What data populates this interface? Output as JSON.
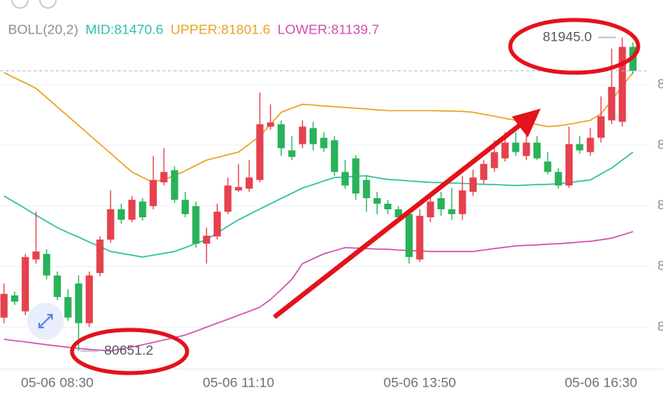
{
  "chart_data": {
    "type": "candlestick",
    "legend": [
      {
        "text": "BOLL(20,2)",
        "color": "#8a8f99"
      },
      {
        "text": "MID:81470.6",
        "color": "#2fbfa5"
      },
      {
        "text": "UPPER:81801.6",
        "color": "#e9a325"
      },
      {
        "text": "LOWER:81139.7",
        "color": "#d44fb0"
      }
    ],
    "max_label": "81945.0",
    "min_label": "80651.2",
    "up_color": "#e5414e",
    "down_color": "#29b259",
    "categories": [
      null,
      null,
      null,
      null,
      null,
      "05-06 08:30",
      null,
      null,
      null,
      null,
      null,
      null,
      null,
      null,
      null,
      null,
      null,
      null,
      null,
      null,
      null,
      null,
      "05-06 11:10",
      null,
      null,
      null,
      null,
      null,
      null,
      null,
      null,
      null,
      null,
      null,
      null,
      null,
      null,
      null,
      null,
      "05-06 13:50",
      null,
      null,
      null,
      null,
      null,
      null,
      null,
      null,
      null,
      null,
      null,
      null,
      null,
      null,
      null,
      null,
      "05-06 16:30",
      null,
      null,
      null
    ],
    "ohlc": {
      "open": [
        80789,
        80881,
        80815,
        81029,
        81052,
        80963,
        80874,
        80930,
        80766,
        80973,
        81111,
        81236,
        81193,
        81268,
        81249,
        81347,
        81397,
        81275,
        81249,
        81094,
        81124,
        81226,
        81314,
        81321,
        81357,
        81577,
        81587,
        81479,
        81505,
        81571,
        81531,
        81521,
        81390,
        81446,
        81357,
        81282,
        81259,
        81236,
        81216,
        81029,
        81203,
        81282,
        81236,
        81216,
        81308,
        81357,
        81406,
        81446,
        81511,
        81456,
        81511,
        81433,
        81390,
        81334,
        81505,
        81472,
        81531,
        81603,
        81597,
        81906
      ],
      "high": [
        80930,
        80897,
        81052,
        81226,
        81071,
        80979,
        80907,
        80963,
        80979,
        81124,
        81314,
        81259,
        81291,
        81282,
        81456,
        81488,
        81413,
        81308,
        81268,
        81160,
        81259,
        81367,
        81423,
        81439,
        81718,
        81669,
        81603,
        81538,
        81603,
        81597,
        81554,
        81538,
        81439,
        81459,
        81374,
        81308,
        81275,
        81249,
        81236,
        81236,
        81291,
        81308,
        81324,
        81374,
        81400,
        81439,
        81521,
        81554,
        81554,
        81544,
        81538,
        81472,
        81406,
        81577,
        81538,
        81571,
        81702,
        81899,
        81945,
        81925
      ],
      "low": [
        80766,
        80841,
        80799,
        81012,
        80947,
        80861,
        80776,
        80651.2,
        80750,
        80960,
        81098,
        81176,
        81183,
        81190,
        81236,
        81334,
        81262,
        81203,
        81078,
        81012,
        81111,
        81216,
        81308,
        81308,
        81347,
        81564,
        81456,
        81439,
        81488,
        81479,
        81472,
        81374,
        81321,
        81275,
        81226,
        81216,
        81216,
        81193,
        81012,
        81019,
        81183,
        81209,
        81193,
        81193,
        81291,
        81341,
        81390,
        81433,
        81456,
        81439,
        81439,
        81380,
        81321,
        81324,
        81465,
        81456,
        81511,
        81587,
        81577,
        81794
      ],
      "close": [
        80887,
        80855,
        81039,
        81062,
        80963,
        80874,
        80789,
        80766,
        80963,
        81111,
        81236,
        81193,
        81275,
        81203,
        81357,
        81390,
        81275,
        81216,
        81094,
        81127,
        81226,
        81334,
        81328,
        81367,
        81587,
        81594,
        81488,
        81452,
        81577,
        81505,
        81488,
        81390,
        81334,
        81301,
        81282,
        81259,
        81236,
        81203,
        81039,
        81209,
        81268,
        81236,
        81216,
        81314,
        81367,
        81423,
        81472,
        81511,
        81472,
        81511,
        81446,
        81390,
        81334,
        81505,
        81479,
        81531,
        81620,
        81741,
        81906,
        81807
      ]
    },
    "series": [
      {
        "color": "#e9a325",
        "values": [
          81800,
          81778,
          81757,
          81735,
          81697,
          81658,
          81620,
          81582,
          81543,
          81505,
          81467,
          81428,
          81390,
          81368,
          81347,
          81360,
          81374,
          81395,
          81417,
          81439,
          81450,
          81461,
          81472,
          81505,
          81538,
          81587,
          81636,
          81653,
          81669,
          81666,
          81662,
          81659,
          81656,
          81653,
          81650,
          81646,
          81643,
          81643,
          81643,
          81643,
          81643,
          81642,
          81641,
          81640,
          81636,
          81628,
          81620,
          81611,
          81603,
          81594,
          81586,
          81577,
          81580,
          81587,
          81595,
          81603,
          81630,
          81685,
          81745,
          81800
        ]
      },
      {
        "color": "#2fbfa5",
        "values": [
          81291,
          81265,
          81239,
          81212,
          81186,
          81160,
          81140,
          81121,
          81101,
          81082,
          81062,
          81054,
          81047,
          81039,
          81047,
          81054,
          81062,
          81078,
          81095,
          81111,
          81138,
          81166,
          81193,
          81215,
          81237,
          81259,
          81281,
          81302,
          81324,
          81338,
          81353,
          81367,
          81369,
          81372,
          81374,
          81366,
          81359,
          81357,
          81353,
          81350,
          81347,
          81346,
          81344,
          81343,
          81341,
          81339,
          81338,
          81336,
          81334,
          81336,
          81338,
          81339,
          81341,
          81346,
          81352,
          81357,
          81382,
          81406,
          81439,
          81472
        ]
      },
      {
        "color": "#d44fb0",
        "values": [
          80700,
          80694,
          80689,
          80683,
          80677,
          80672,
          80667,
          80662,
          80658,
          80655,
          80651.5,
          80660,
          80668,
          80677,
          80687,
          80697,
          80707,
          80717,
          80733,
          80750,
          80766,
          80782,
          80799,
          80815,
          80832,
          80864,
          80905,
          80947,
          81012,
          81032,
          81052,
          81065,
          81078,
          81076,
          81074,
          81072,
          81071,
          81068,
          81066,
          81064,
          81062,
          81062,
          81062,
          81062,
          81062,
          81068,
          81074,
          81079,
          81085,
          81087,
          81089,
          81092,
          81094,
          81097,
          81101,
          81104,
          81110,
          81117,
          81130,
          81144
        ]
      }
    ],
    "ylim": [
      80600,
      82050
    ],
    "yticks": [
      {
        "value": 80750,
        "label": "8"
      },
      {
        "value": 81000,
        "label": "8"
      },
      {
        "value": 81250,
        "label": "8"
      },
      {
        "value": 81500,
        "label": "8"
      },
      {
        "value": 81750,
        "label": "8"
      }
    ],
    "grid": true
  }
}
